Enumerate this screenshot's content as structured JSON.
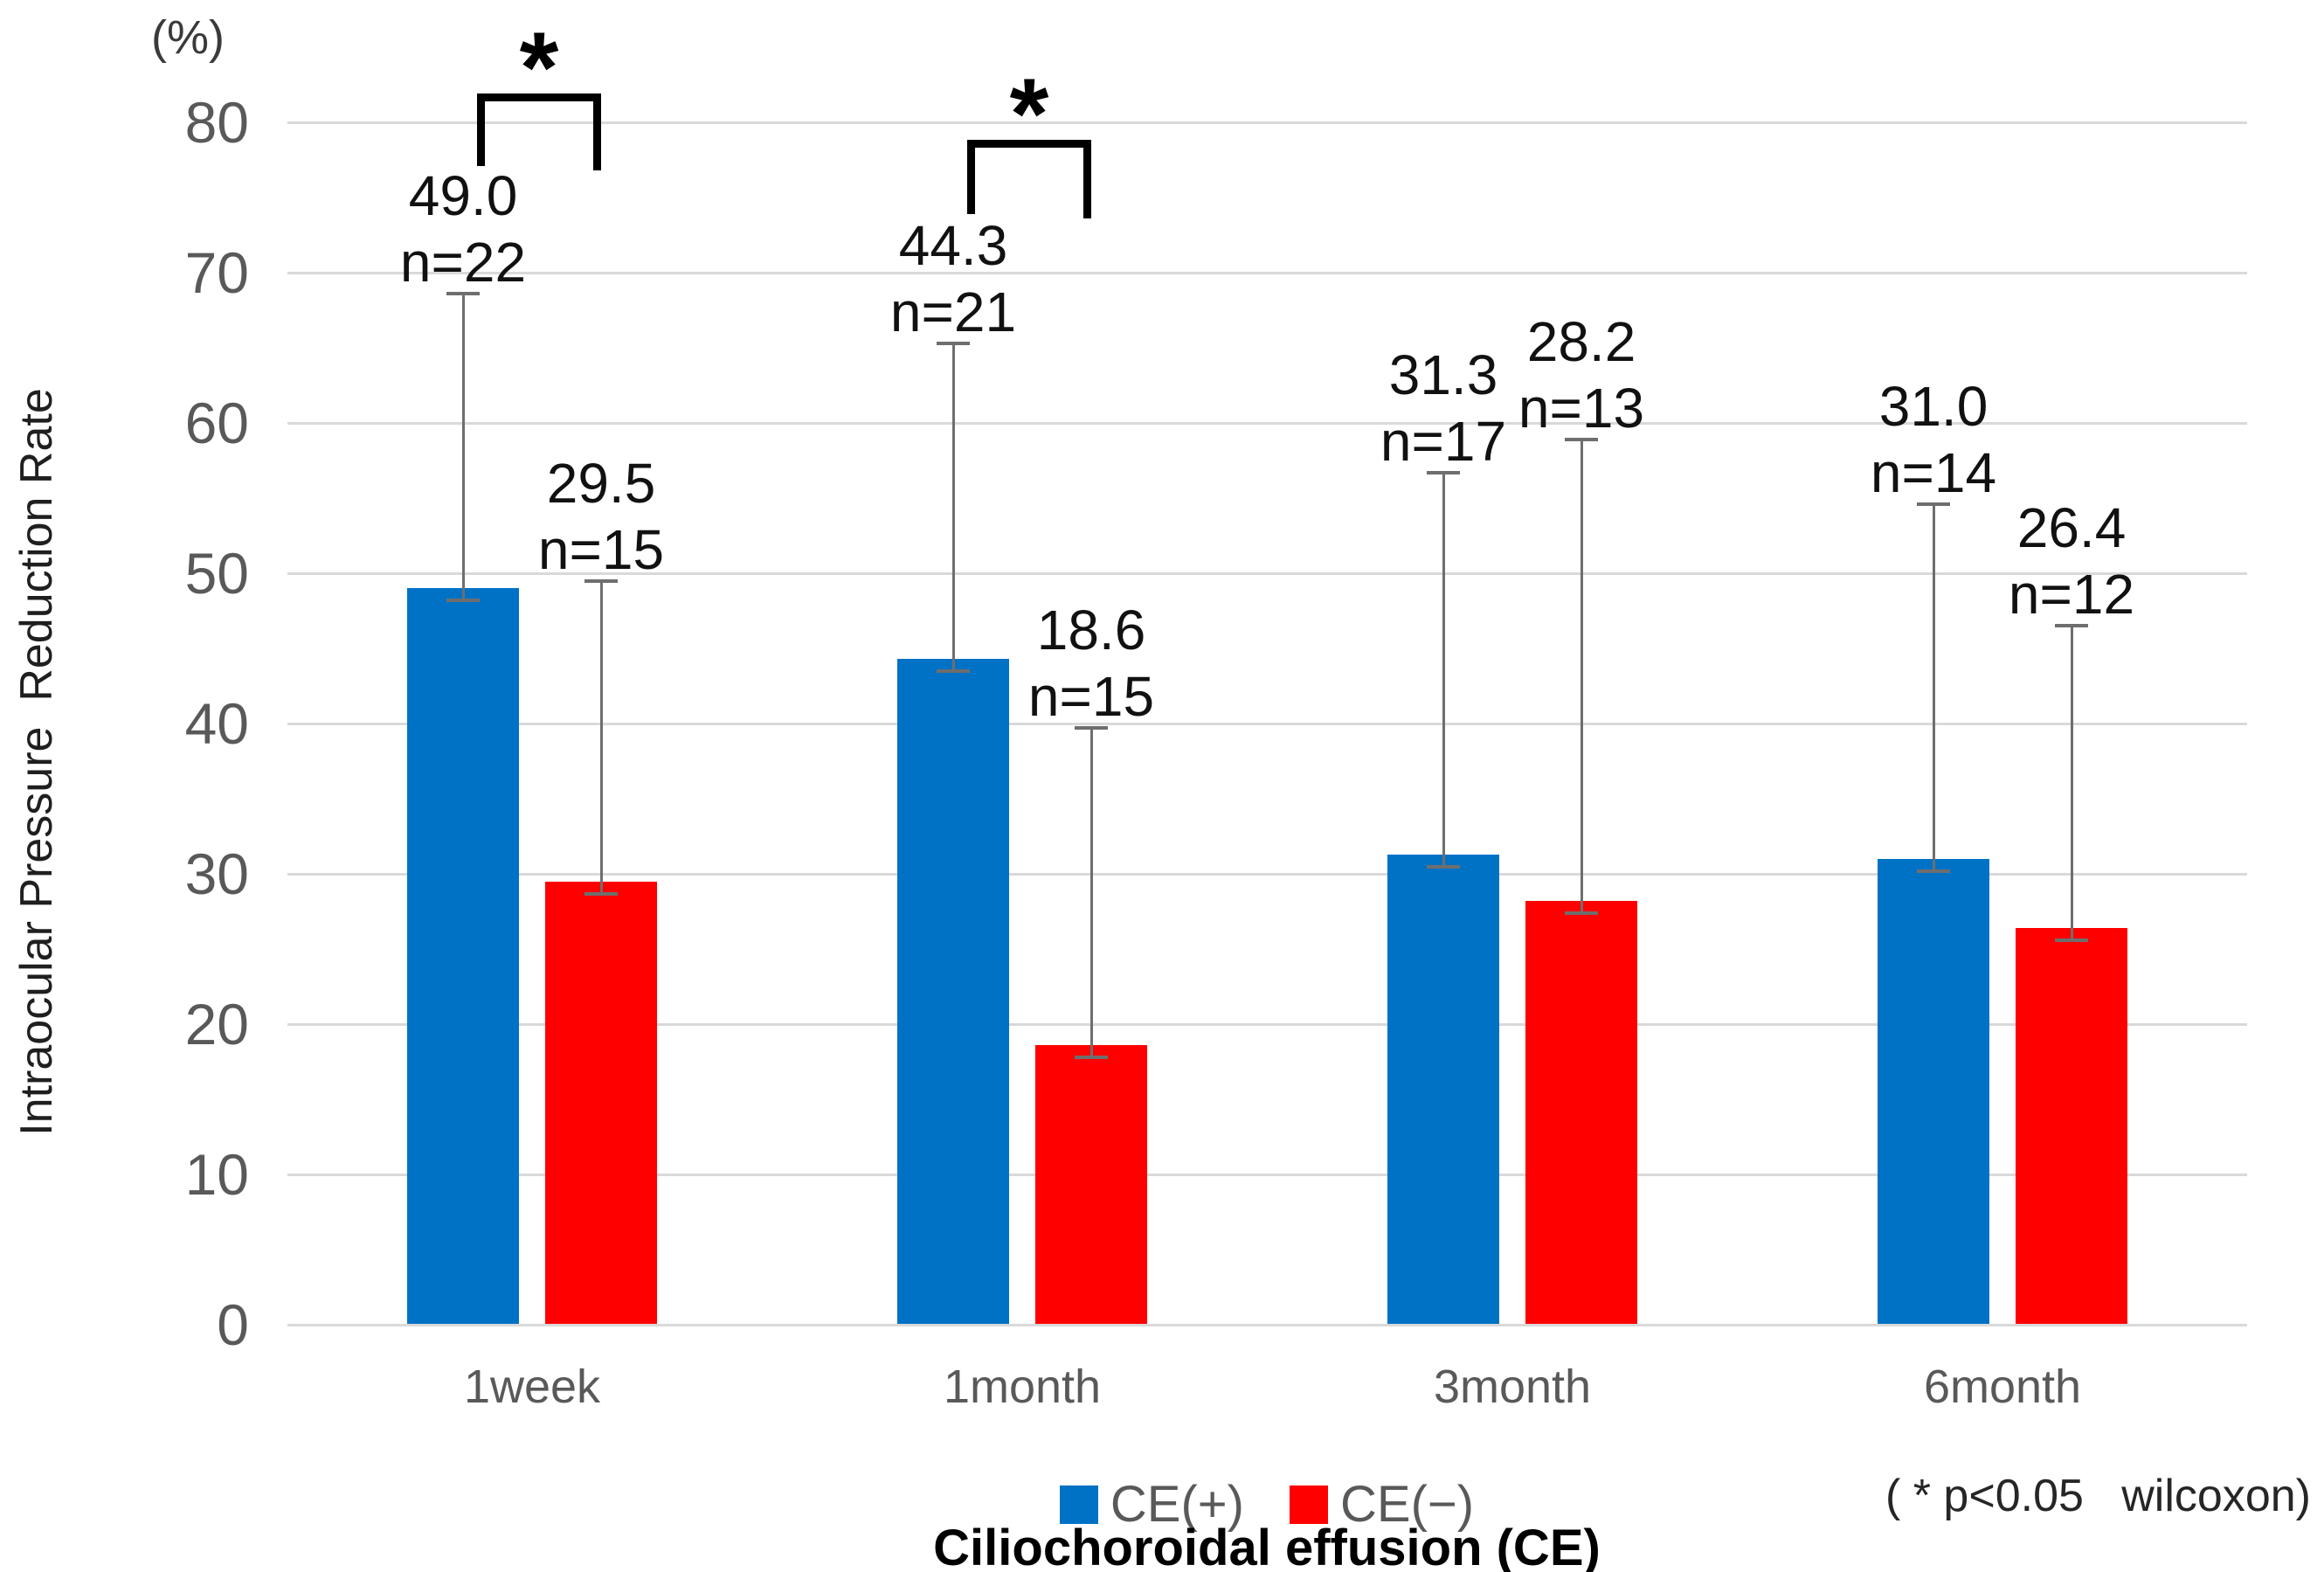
{
  "figure": {
    "y_unit_label": "(%)",
    "y_axis_title": "Intraocular Pressure  Reduction Rate",
    "x_axis_title": "Ciliochoroidal effusion (CE)",
    "annotation": "( * p<0.05   wilcoxon)"
  },
  "chart_data": {
    "type": "bar",
    "title": "",
    "categories": [
      "1week",
      "1month",
      "3month",
      "6month"
    ],
    "series": [
      {
        "name": "CE(+)",
        "color": "#0072c6",
        "values": [
          49.0,
          44.3,
          31.3,
          31.0
        ],
        "n": [
          22,
          21,
          17,
          14
        ],
        "error_top": [
          68.6,
          65.3,
          56.7,
          54.6
        ]
      },
      {
        "name": "CE(−)",
        "color": "#ff0000",
        "values": [
          29.5,
          18.6,
          28.2,
          26.4
        ],
        "n": [
          15,
          15,
          13,
          12
        ],
        "error_top": [
          49.5,
          39.7,
          58.9,
          46.5
        ]
      }
    ],
    "ylabel": "Intraocular Pressure  Reduction Rate",
    "y_unit": "(%)",
    "xlabel": "Ciliochoroidal effusion (CE)",
    "ylim": [
      0,
      80
    ],
    "yticks": [
      0,
      10,
      20,
      30,
      40,
      50,
      60,
      70,
      80
    ],
    "grid": "horizontal",
    "legend": [
      "CE(+)",
      "CE(−)"
    ],
    "legend_position": "bottom",
    "significance_brackets": [
      {
        "category": "1week",
        "label": "*"
      },
      {
        "category": "1month",
        "label": "*"
      }
    ],
    "footnote": "( * p<0.05   wilcoxon)"
  }
}
